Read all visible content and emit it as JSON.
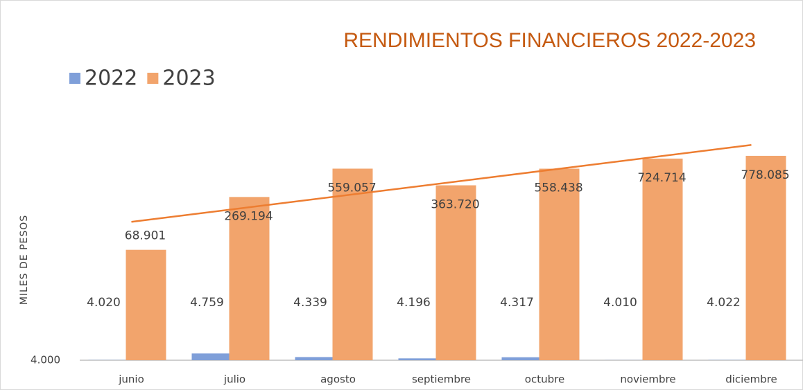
{
  "chart_data": {
    "type": "bar",
    "title": "RENDIMIENTOS FINANCIEROS 2022-2023",
    "y_label": "MILES DE PESOS",
    "categories": [
      "junio",
      "julio",
      "agosto",
      "septiembre",
      "octubre",
      "noviembre",
      "diciembre"
    ],
    "series": [
      {
        "name": "2022",
        "color": "#7f9fd9",
        "values": [
          4020,
          4759,
          4339,
          4196,
          4317,
          4010,
          4022
        ],
        "value_labels": [
          "4.020",
          "4.759",
          "4.339",
          "4.196",
          "4.317",
          "4.010",
          "4.022"
        ]
      },
      {
        "name": "2023",
        "color": "#f2a46c",
        "values": [
          68901,
          269194,
          559057,
          363720,
          558438,
          724714,
          778085
        ],
        "value_labels": [
          "68.901",
          "269.194",
          "559.057",
          "363.720",
          "558.438",
          "724.714",
          "778.085"
        ]
      }
    ],
    "ylim": [
      4000,
      10000000
    ],
    "yticks": [
      {
        "value": 4000,
        "label": "4.000"
      }
    ],
    "log_scale": true,
    "legend": "top-left",
    "trendline_color": "#ed7d31"
  }
}
